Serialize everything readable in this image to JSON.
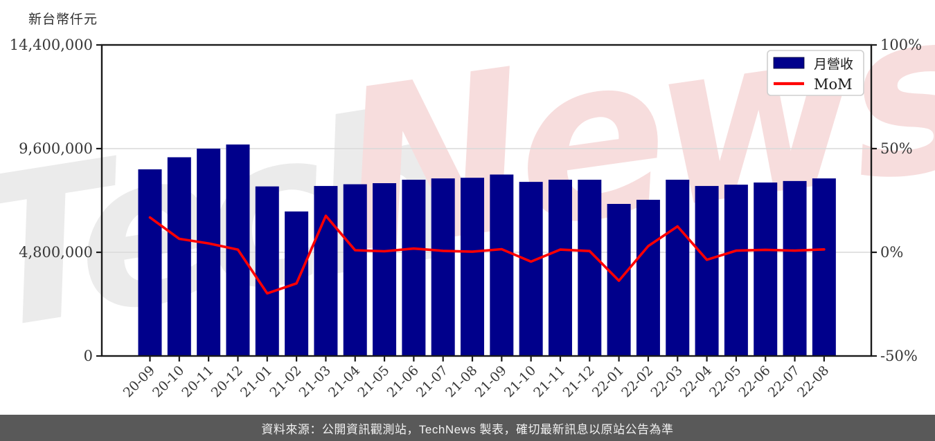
{
  "chart_data": {
    "type": "bar",
    "unit_label": "新台幣仟元",
    "categories": [
      "20-09",
      "20-10",
      "20-11",
      "20-12",
      "21-01",
      "21-02",
      "21-03",
      "21-04",
      "21-05",
      "21-06",
      "21-07",
      "21-08",
      "21-09",
      "21-10",
      "21-11",
      "21-12",
      "22-01",
      "22-02",
      "22-03",
      "22-04",
      "22-05",
      "22-06",
      "22-07",
      "22-08"
    ],
    "series": [
      {
        "name": "月營收",
        "type": "bar",
        "axis": "left",
        "values": [
          8640000,
          9200000,
          9600000,
          9790000,
          7850000,
          6690000,
          7870000,
          7950000,
          8000000,
          8160000,
          8220000,
          8250000,
          8400000,
          8060000,
          8160000,
          8160000,
          7040000,
          7230000,
          8160000,
          7870000,
          7930000,
          8030000,
          8100000,
          8220000
        ]
      },
      {
        "name": "MoM",
        "type": "line",
        "axis": "right",
        "values": [
          16.8,
          6.5,
          4.3,
          1.3,
          -19.8,
          -15.0,
          17.6,
          1.0,
          0.5,
          1.8,
          0.7,
          0.3,
          1.5,
          -4.5,
          1.3,
          0.6,
          -13.7,
          3.0,
          12.5,
          -3.6,
          0.8,
          1.2,
          0.8,
          1.4
        ]
      }
    ],
    "left_axis": {
      "tick_labels": [
        "0",
        "4,800,000",
        "9,600,000",
        "14,400,000"
      ],
      "tick_values": [
        0,
        4800000,
        9600000,
        14400000
      ],
      "range": [
        0,
        14400000
      ]
    },
    "right_axis": {
      "tick_labels": [
        "-50%",
        "0%",
        "50%",
        "100%"
      ],
      "tick_values": [
        -50,
        0,
        50,
        100
      ],
      "range": [
        -50,
        100
      ]
    },
    "grid": "horizontal",
    "legend": {
      "position": "top-right",
      "entries": [
        "月營收",
        "MoM"
      ]
    }
  },
  "watermark": {
    "part_gray": "Tech",
    "part_pink": "News"
  },
  "footer": {
    "text": "資料來源：公開資訊觀測站，TechNews 製表，確切最新訊息以原站公告為準"
  },
  "colors": {
    "bar": "#00008B",
    "line": "#FF0000",
    "grid": "#d9d9d9",
    "axis": "#1a1a1a",
    "tick_text": "#363636",
    "legend_border": "#cfcfcf",
    "legend_bg": "#ffffff",
    "footer_bg": "#595959",
    "footer_text": "#f2f2f2",
    "watermark_gray": "#ebebeb",
    "watermark_pink": "#f7dddd"
  }
}
